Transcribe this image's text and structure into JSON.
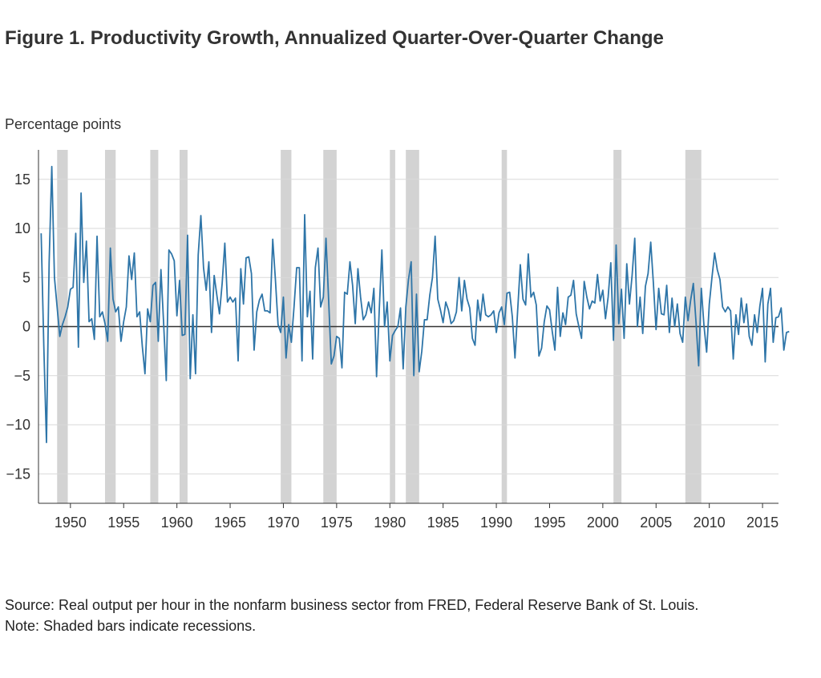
{
  "title": "Figure 1. Productivity Growth, Annualized Quarter-Over-Quarter Change",
  "source": "Source: Real output per hour in the nonfarm business sector from FRED, Federal Reserve Bank of St. Louis.",
  "note": "Note: Shaded bars indicate recessions.",
  "colors": {
    "line": "#2e75a8",
    "recession": "#d3d3d3",
    "grid": "#d9d9d9",
    "zero": "#333333"
  },
  "chart_data": {
    "type": "line",
    "title": "Figure 1. Productivity Growth, Annualized Quarter-Over-Quarter Change",
    "ylabel": "Percentage points",
    "xlabel": "",
    "xlim": [
      1947.0,
      2016.5
    ],
    "ylim": [
      -18,
      18
    ],
    "grid": true,
    "x_ticks": [
      1950,
      1955,
      1960,
      1965,
      1970,
      1975,
      1980,
      1985,
      1990,
      1995,
      2000,
      2005,
      2010,
      2015
    ],
    "y_ticks": [
      15,
      10,
      5,
      0,
      -5,
      -10,
      -15
    ],
    "y_tick_labels": [
      "15",
      "10",
      "5",
      "0",
      "−5",
      "−10",
      "−15"
    ],
    "recessions": [
      [
        1948.75,
        1949.75
      ],
      [
        1953.25,
        1954.25
      ],
      [
        1957.5,
        1958.25
      ],
      [
        1960.25,
        1961.0
      ],
      [
        1969.75,
        1970.75
      ],
      [
        1973.75,
        1975.0
      ],
      [
        1980.0,
        1980.5
      ],
      [
        1981.5,
        1982.75
      ],
      [
        1990.5,
        1991.0
      ],
      [
        2001.0,
        2001.75
      ],
      [
        2007.75,
        2009.25
      ]
    ],
    "series": [
      {
        "start": 1947.25,
        "step": 0.25,
        "values": [
          9.5,
          -2.0,
          -11.8,
          6.5,
          16.3,
          5.0,
          2.0,
          -1.0,
          0.2,
          1.0,
          2.0,
          3.8,
          4.0,
          9.5,
          -2.1,
          13.6,
          4.5,
          8.7,
          0.5,
          0.8,
          -1.3,
          9.2,
          1.0,
          1.5,
          0.3,
          -1.5,
          8.0,
          2.8,
          1.5,
          2.0,
          -1.5,
          0.5,
          2.0,
          7.2,
          4.8,
          7.5,
          1.0,
          1.5,
          -2.0,
          -4.8,
          1.8,
          0.5,
          4.2,
          4.5,
          -1.5,
          5.8,
          0.4,
          -5.5,
          7.8,
          7.4,
          6.7,
          1.1,
          4.7,
          -0.9,
          -0.8,
          9.3,
          -5.3,
          1.2,
          -4.8,
          7.3,
          11.3,
          6.0,
          3.7,
          6.6,
          -0.6,
          5.2,
          3.2,
          1.3,
          4.4,
          8.5,
          2.5,
          3.0,
          2.5,
          2.9,
          -3.5,
          5.9,
          2.3,
          7.0,
          7.1,
          5.4,
          -2.4,
          1.5,
          2.7,
          3.3,
          1.6,
          1.6,
          1.4,
          8.9,
          4.8,
          0.2,
          -0.6,
          3.0,
          -3.2,
          0.2,
          -1.6,
          2.0,
          6.0,
          6.0,
          -3.5,
          11.4,
          1.0,
          3.6,
          -3.3,
          6.0,
          8.0,
          2.0,
          3.0,
          9.0,
          2.7,
          -3.8,
          -3.0,
          -1.0,
          -1.2,
          -4.2,
          3.5,
          3.3,
          6.6,
          4.2,
          0.3,
          5.9,
          3.0,
          0.7,
          1.2,
          2.5,
          1.4,
          3.9,
          -5.1,
          1.6,
          7.8,
          0.0,
          2.5,
          -3.5,
          -0.9,
          -0.4,
          0.0,
          1.9,
          -4.3,
          2.0,
          4.8,
          6.6,
          -5.0,
          3.3,
          -4.6,
          -2.5,
          0.7,
          0.7,
          3.2,
          5.0,
          9.2,
          2.8,
          1.7,
          0.4,
          2.5,
          1.7,
          0.3,
          0.6,
          1.5,
          5.0,
          1.6,
          4.7,
          2.8,
          1.9,
          -1.2,
          -1.9,
          2.7,
          0.6,
          3.3,
          1.2,
          1.0,
          1.2,
          1.6,
          -0.6,
          1.4,
          2.0,
          0.2,
          3.4,
          3.5,
          1.0,
          -3.2,
          1.6,
          6.3,
          2.8,
          2.2,
          7.4,
          3.0,
          3.5,
          2.2,
          -3.0,
          -2.2,
          0.5,
          2.1,
          1.7,
          -0.5,
          -2.4,
          4.0,
          -1.0,
          1.4,
          0.2,
          3.0,
          3.2,
          4.7,
          1.3,
          0.0,
          -1.2,
          4.6,
          3.0,
          1.8,
          2.6,
          2.4,
          5.3,
          2.6,
          3.7,
          0.8,
          3.0,
          6.5,
          -1.4,
          8.3,
          0.3,
          3.8,
          -1.2,
          6.4,
          2.3,
          5.2,
          9.0,
          0.0,
          3.0,
          -0.7,
          4.1,
          5.4,
          8.6,
          4.4,
          -0.3,
          3.9,
          1.3,
          1.2,
          4.2,
          -0.6,
          2.9,
          0.0,
          2.3,
          -0.7,
          -1.6,
          3.0,
          0.6,
          2.7,
          4.4,
          0.5,
          -4.0,
          3.9,
          0.1,
          -2.6,
          2.3,
          5.0,
          7.5,
          5.8,
          4.8,
          2.0,
          1.5,
          2.0,
          1.6,
          -3.3,
          1.2,
          -0.8,
          2.9,
          0.4,
          2.3,
          -1.0,
          -1.9,
          1.2,
          -0.6,
          2.1,
          3.9,
          -3.6,
          2.3,
          3.9,
          -1.6,
          0.9,
          1.0,
          1.9,
          -2.4,
          -0.6,
          -0.5
        ]
      }
    ]
  }
}
